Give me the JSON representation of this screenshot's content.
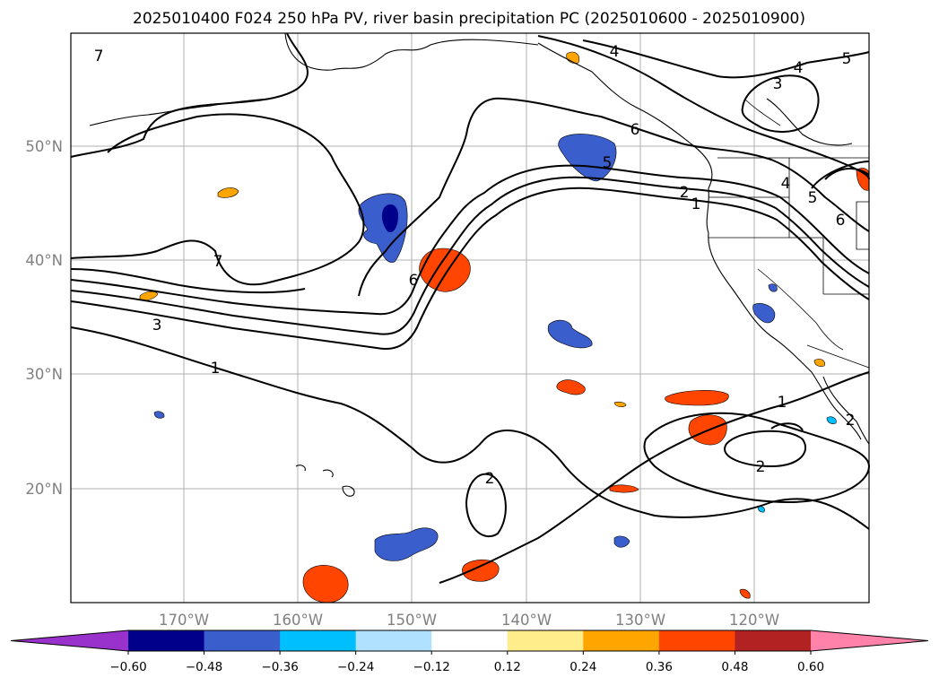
{
  "title": "2025010400 F024 250 hPa PV, river basin precipitation PC (2025010600 - 2025010900)",
  "map": {
    "lon_labels": [
      "170°W",
      "160°W",
      "150°W",
      "140°W",
      "130°W",
      "120°W"
    ],
    "lat_labels": [
      "50°N",
      "40°N",
      "30°N",
      "20°N"
    ],
    "contour_labels": [
      "7",
      "4",
      "4",
      "5",
      "3",
      "6",
      "5",
      "2",
      "1",
      "4",
      "5",
      "6",
      "7",
      "6",
      "3",
      "1",
      "2",
      "1",
      "2",
      "2"
    ]
  },
  "colorbar": {
    "ticks": [
      "−0.60",
      "−0.48",
      "−0.36",
      "−0.24",
      "−0.12",
      "0.12",
      "0.24",
      "0.36",
      "0.48",
      "0.60"
    ],
    "colors": [
      "#9932cc",
      "#00008b",
      "#3a5fcd",
      "#00bfff",
      "#b0e2ff",
      "#ffffff",
      "#ffec8b",
      "#ffa500",
      "#ff4500",
      "#b22222",
      "#ff82ab"
    ]
  }
}
